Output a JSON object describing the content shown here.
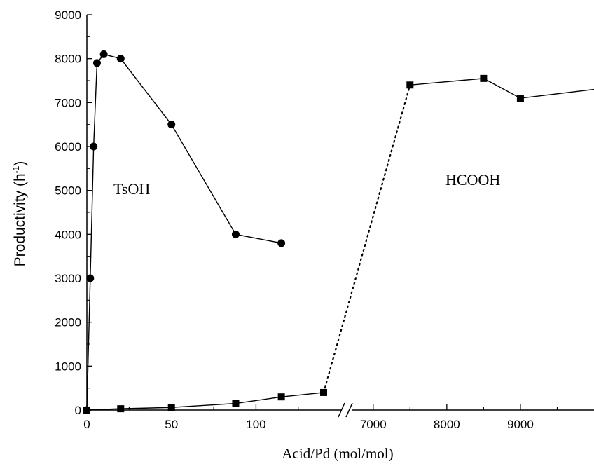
{
  "chart_data": {
    "type": "line",
    "title": "",
    "xlabel": "Acid/Pd (mol/mol)",
    "ylabel_main": "Productivity (h",
    "ylabel_sup": "-1",
    "ylabel_close": ")",
    "ylim": [
      0,
      9000
    ],
    "y_ticks": [
      "0",
      "1000",
      "2000",
      "3000",
      "4000",
      "5000",
      "6000",
      "7000",
      "8000",
      "9000"
    ],
    "x_axis_break": true,
    "x_segments": [
      {
        "range": [
          0,
          140
        ],
        "tick_labels": [
          "0",
          "50",
          "100"
        ],
        "tick_values": [
          0,
          50,
          100
        ]
      },
      {
        "range": [
          6850,
          10000
        ],
        "tick_labels": [
          "7000",
          "8000",
          "9000"
        ],
        "tick_values": [
          7000,
          8000,
          9000
        ]
      }
    ],
    "series": [
      {
        "name": "TsOH",
        "marker": "circle",
        "line": "solid",
        "points": [
          {
            "x": 0,
            "y": 0
          },
          {
            "x": 2,
            "y": 3000
          },
          {
            "x": 4,
            "y": 6000
          },
          {
            "x": 6,
            "y": 7900
          },
          {
            "x": 10,
            "y": 8100
          },
          {
            "x": 20,
            "y": 8000
          },
          {
            "x": 50,
            "y": 6500
          },
          {
            "x": 88,
            "y": 4000
          },
          {
            "x": 115,
            "y": 3800
          }
        ]
      },
      {
        "name": "HCOOH",
        "marker": "square",
        "line": "solid",
        "points": [
          {
            "x": 0,
            "y": 0
          },
          {
            "x": 20,
            "y": 30
          },
          {
            "x": 50,
            "y": 60
          },
          {
            "x": 88,
            "y": 150
          },
          {
            "x": 115,
            "y": 300
          },
          {
            "x": 140,
            "y": 400
          }
        ],
        "points_after_break": [
          {
            "x": 7500,
            "y": 7400
          },
          {
            "x": 8500,
            "y": 7550
          },
          {
            "x": 9000,
            "y": 7100
          },
          {
            "x": 10000,
            "y": 7300
          }
        ],
        "bridge_line": "dotted"
      }
    ],
    "annotations": [
      {
        "text": "TsOH"
      },
      {
        "text": "HCOOH"
      }
    ],
    "grid": false,
    "legend": "none"
  }
}
